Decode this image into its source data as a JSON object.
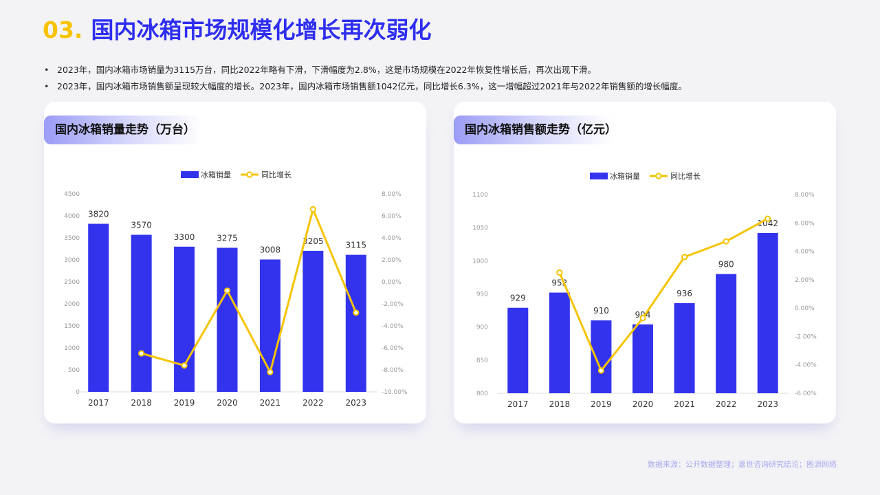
{
  "header": {
    "number": "03.",
    "title": "国内冰箱市场规模化增长再次弱化"
  },
  "bullets": [
    "2023年，国内冰箱市场销量为3115万台，同比2022年略有下滑，下滑幅度为2.8%，这是市场规模在2022年恢复性增长后，再次出现下滑。",
    "2023年，国内冰箱市场销售额呈现较大幅度的增长。2023年，国内冰箱市场销售额1042亿元，同比增长6.3%，这一增幅超过2021年与2022年销售额的增长幅度。"
  ],
  "colors": {
    "bar": "#3333ee",
    "line": "#f5c400",
    "accent": "#2e2ef0",
    "number": "#f7c300"
  },
  "chart_data": [
    {
      "type": "bar",
      "title": "国内冰箱销量走势（万台）",
      "categories": [
        "2017",
        "2018",
        "2019",
        "2020",
        "2021",
        "2022",
        "2023"
      ],
      "series": [
        {
          "name": "冰箱销量",
          "type": "bar",
          "axis": "left",
          "values": [
            3820,
            3570,
            3300,
            3275,
            3008,
            3205,
            3115
          ]
        },
        {
          "name": "同比增长",
          "type": "line",
          "axis": "right",
          "values": [
            null,
            -6.5,
            -7.6,
            -0.8,
            -8.2,
            6.6,
            -2.8
          ]
        }
      ],
      "ylim": [
        0,
        4500
      ],
      "yticks": [
        "0",
        "500",
        "1000",
        "1500",
        "2000",
        "2500",
        "3000",
        "3500",
        "4000",
        "4500"
      ],
      "y2lim": [
        -10,
        8
      ],
      "y2ticks": [
        "-10.00%",
        "-8.00%",
        "-6.00%",
        "-4.00%",
        "-2.00%",
        "0.00%",
        "2.00%",
        "4.00%",
        "6.00%",
        "8.00%"
      ],
      "bar_labels": [
        "3820",
        "3570",
        "3300",
        "3275",
        "3008",
        "3205",
        "3115"
      ],
      "legend": "top-center",
      "grid": false
    },
    {
      "type": "bar",
      "title": "国内冰箱销售额走势（亿元）",
      "categories": [
        "2017",
        "2018",
        "2019",
        "2020",
        "2021",
        "2022",
        "2023"
      ],
      "series": [
        {
          "name": "冰箱销量",
          "type": "bar",
          "axis": "left",
          "values": [
            929,
            952,
            910,
            904,
            936,
            980,
            1042
          ]
        },
        {
          "name": "同比增长",
          "type": "line",
          "axis": "right",
          "values": [
            null,
            2.5,
            -4.4,
            -0.7,
            3.6,
            4.7,
            6.3
          ]
        }
      ],
      "ylim": [
        800,
        1100
      ],
      "yticks": [
        "800",
        "850",
        "900",
        "950",
        "1000",
        "1050",
        "1100"
      ],
      "y2lim": [
        -6,
        8
      ],
      "y2ticks": [
        "-6.00%",
        "-4.00%",
        "-2.00%",
        "0.00%",
        "2.00%",
        "4.00%",
        "6.00%",
        "8.00%"
      ],
      "bar_labels": [
        "929",
        "952",
        "910",
        "904",
        "936",
        "980",
        "1042"
      ],
      "legend": "top-center",
      "grid": false
    }
  ],
  "footer": "数据来源：公开数据整理；嘉世咨询研究结论；图源网络"
}
